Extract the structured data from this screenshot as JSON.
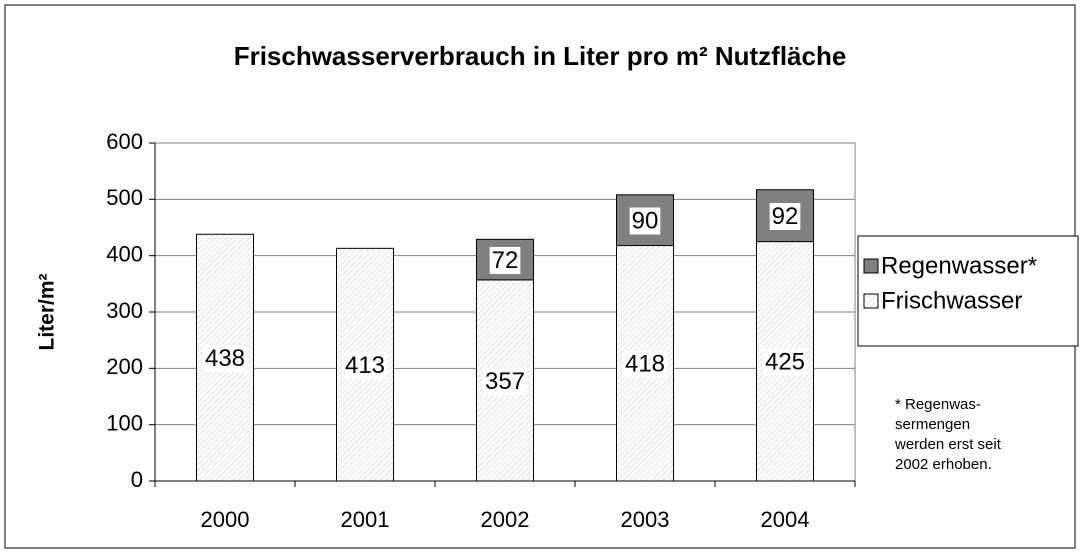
{
  "chart_data": {
    "type": "stacked_bar",
    "title": "Frischwasserverbrauch in Liter pro m² Nutzfläche",
    "y_label": "Liter/m²",
    "categories": [
      "2000",
      "2001",
      "2002",
      "2003",
      "2004"
    ],
    "series": [
      {
        "name": "Frischwasser",
        "color": "#d9d9d9",
        "values": [
          438,
          413,
          357,
          418,
          425
        ]
      },
      {
        "name": "Regenwasser*",
        "color": "#808080",
        "values": [
          null,
          null,
          72,
          90,
          92
        ]
      }
    ],
    "ylim": [
      0,
      600
    ],
    "yticks": [
      0,
      100,
      200,
      300,
      400,
      500,
      600
    ],
    "grid": true,
    "legend": "right",
    "note": [
      "* Regenwas-",
      "sermengen",
      "werden erst seit",
      "2002 erhoben."
    ]
  }
}
